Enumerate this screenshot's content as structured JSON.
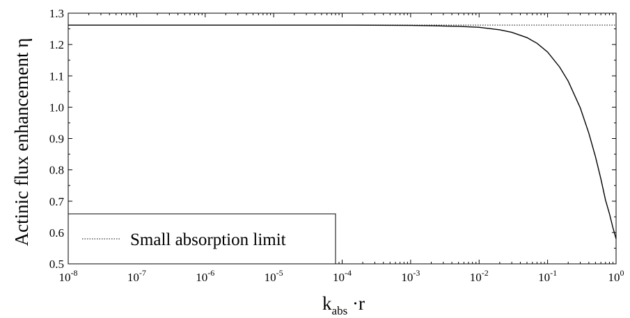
{
  "chart_data": {
    "type": "line",
    "title": "",
    "xlabel": {
      "main": "k",
      "sub": "abs",
      "rest": " ·r"
    },
    "ylabel": "Actinic flux enhancement η",
    "xscale": "log",
    "xlim": [
      1e-08,
      1
    ],
    "ylim": [
      0.5,
      1.3
    ],
    "x_ticks": [
      {
        "base": "10",
        "exp": "-8"
      },
      {
        "base": "10",
        "exp": "-7"
      },
      {
        "base": "10",
        "exp": "-6"
      },
      {
        "base": "10",
        "exp": "-5"
      },
      {
        "base": "10",
        "exp": "-4"
      },
      {
        "base": "10",
        "exp": "-3"
      },
      {
        "base": "10",
        "exp": "-2"
      },
      {
        "base": "10",
        "exp": "-1"
      },
      {
        "base": "10",
        "exp": "0"
      }
    ],
    "y_ticks": [
      "0.5",
      "0.6",
      "0.7",
      "0.8",
      "0.9",
      "1.0",
      "1.1",
      "1.2",
      "1.3"
    ],
    "grid": false,
    "legend_position": "bottom-left",
    "series": [
      {
        "name": "",
        "style": "solid",
        "color": "#000000",
        "x": [
          1e-08,
          1e-06,
          0.0001,
          0.001,
          0.002,
          0.005,
          0.01,
          0.02,
          0.03,
          0.05,
          0.07,
          0.1,
          0.15,
          0.2,
          0.3,
          0.4,
          0.5,
          0.6,
          0.7,
          0.8,
          0.9,
          1.0
        ],
        "y": [
          1.262,
          1.262,
          1.262,
          1.261,
          1.26,
          1.258,
          1.255,
          1.247,
          1.239,
          1.222,
          1.204,
          1.176,
          1.128,
          1.083,
          0.998,
          0.917,
          0.842,
          0.771,
          0.704,
          0.66,
          0.615,
          0.58
        ]
      },
      {
        "name": "Small absorption limit",
        "style": "dotted",
        "color": "#000000",
        "x": [
          1e-08,
          1
        ],
        "y": [
          1.262,
          1.262
        ]
      }
    ]
  }
}
